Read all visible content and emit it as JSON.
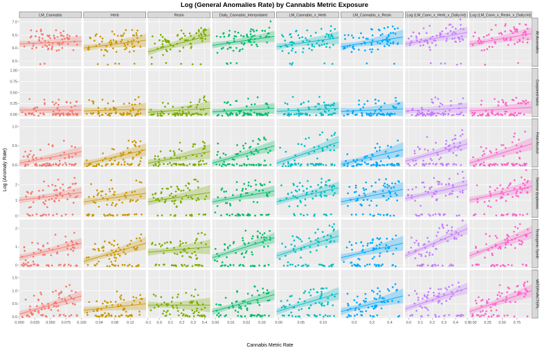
{
  "chart_data": {
    "type": "scatter",
    "title": "Log (General Anomalies Rate) by Cannabis Metric Exposure",
    "xlabel": "Cannabis Metric Rate",
    "ylabel": "Log (Anomaly Rate)",
    "grid": true,
    "smoother": "linear fit with confidence band",
    "columns": [
      {
        "name": "LM_Cannabis",
        "color": "#F8766D",
        "xlim": [
          0,
          0.1
        ],
        "xticks": [
          0.0,
          0.025,
          0.05,
          0.075,
          0.1
        ],
        "xtick_labels": [
          "0.000",
          "0.025",
          "0.050",
          "0.075",
          "0.100"
        ]
      },
      {
        "name": "Herb",
        "color": "#CD9600",
        "xlim": [
          0.0,
          0.16
        ],
        "xticks": [
          0.04,
          0.08,
          0.12
        ],
        "xtick_labels": [
          "0.04",
          "0.08",
          "0.12"
        ]
      },
      {
        "name": "Resin",
        "color": "#7CAE00",
        "xlim": [
          -0.1,
          0.45
        ],
        "xticks": [
          -0.1,
          0.0,
          0.1,
          0.2,
          0.3,
          0.4
        ],
        "xtick_labels": [
          "-0.1",
          "0.0",
          "0.1",
          "0.2",
          "0.3",
          "0.4"
        ]
      },
      {
        "name": "Daily_Cannabis_Interpolated",
        "color": "#00BE67",
        "xlim": [
          -0.002,
          0.038
        ],
        "xticks": [
          0.0,
          0.01,
          0.02,
          0.03
        ],
        "xtick_labels": [
          "0.00",
          "0.01",
          "0.02",
          "0.03"
        ]
      },
      {
        "name": "LM_Cannabis_x_Herb",
        "color": "#00BFC4",
        "xlim": [
          -0.005,
          0.135
        ],
        "xticks": [
          0.0,
          0.05,
          0.1
        ],
        "xtick_labels": [
          "0.00",
          "0.05",
          "0.10"
        ]
      },
      {
        "name": "LM_Cannabis_x_Resin",
        "color": "#00A9FF",
        "xlim": [
          -0.15,
          0.55
        ],
        "xticks": [
          0.0,
          0.2,
          0.4
        ],
        "xtick_labels": [
          "0.0",
          "0.2",
          "0.4"
        ]
      },
      {
        "name": "Log (LM_Cann_x_Herb_x_Daily.Int)",
        "color": "#C77CFF",
        "xlim": [
          -0.03,
          0.5
        ],
        "xticks": [
          0.0,
          0.1,
          0.2,
          0.3,
          0.4,
          0.5
        ],
        "xtick_labels": [
          "0.0",
          "0.1",
          "0.2",
          "0.3",
          "0.4",
          "0.5"
        ]
      },
      {
        "name": "Log (LM_Cann_x_Resin_x_Daily.Int)",
        "color": "#FF61CC",
        "xlim": [
          -0.06,
          1.0
        ],
        "xticks": [
          0.0,
          0.25,
          0.5,
          0.75
        ],
        "xtick_labels": [
          "0.00",
          "0.25",
          "0.50",
          "0.75"
        ]
      }
    ],
    "rows": [
      {
        "name": "All Anomalies",
        "ylim": [
          5.3,
          7.15
        ],
        "yticks": [
          5.5,
          6.0,
          6.5,
          7.0
        ],
        "ytick_labels": [
          "5.5",
          "6.0",
          "6.5",
          "7.0"
        ],
        "base": 6.05,
        "spread": 0.38,
        "low_cluster": 0.05,
        "fit": [
          [
            6.16,
            6.26
          ],
          [
            6.0,
            6.3
          ],
          [
            5.85,
            6.5
          ],
          [
            6.1,
            6.45
          ],
          [
            6.05,
            6.4
          ],
          [
            6.05,
            6.42
          ],
          [
            6.15,
            6.6
          ],
          [
            6.15,
            6.55
          ]
        ]
      },
      {
        "name": "Conjoined twins",
        "ylim": [
          -0.05,
          1.05
        ],
        "yticks": [
          0.0,
          0.25,
          0.5,
          0.75,
          1.0
        ],
        "ytick_labels": [
          "0.00",
          "0.25",
          "0.50",
          "0.75",
          "1.00"
        ],
        "base": 0.12,
        "spread": 0.2,
        "low_cluster": 0.45,
        "fit": [
          [
            0.1,
            0.1
          ],
          [
            0.08,
            0.12
          ],
          [
            0.05,
            0.14
          ],
          [
            0.06,
            0.14
          ],
          [
            0.07,
            0.14
          ],
          [
            0.07,
            0.13
          ],
          [
            0.08,
            0.15
          ],
          [
            0.08,
            0.16
          ]
        ]
      },
      {
        "name": "Fetal Alcohol",
        "ylim": [
          -0.05,
          1.2
        ],
        "yticks": [
          0.0,
          0.5,
          1.0
        ],
        "ytick_labels": [
          "0.0",
          "0.5",
          "1.0"
        ],
        "base": 0.2,
        "spread": 0.3,
        "low_cluster": 0.45,
        "fit": [
          [
            0.05,
            0.35
          ],
          [
            0.02,
            0.4
          ],
          [
            0.05,
            0.35
          ],
          [
            0.05,
            0.5
          ],
          [
            0.05,
            0.6
          ],
          [
            0.02,
            0.4
          ],
          [
            0.1,
            0.55
          ],
          [
            0.05,
            0.55
          ]
        ]
      },
      {
        "name": "Skeletal dysplasias",
        "ylim": [
          -0.1,
          3.0
        ],
        "yticks": [
          0,
          1,
          2
        ],
        "ytick_labels": [
          "0",
          "1",
          "2"
        ],
        "base": 1.0,
        "spread": 0.7,
        "low_cluster": 0.25,
        "fit": [
          [
            1.0,
            1.5
          ],
          [
            0.9,
            1.45
          ],
          [
            0.9,
            1.5
          ],
          [
            0.9,
            1.6
          ],
          [
            0.9,
            1.8
          ],
          [
            0.9,
            1.7
          ],
          [
            1.1,
            2.0
          ],
          [
            1.0,
            1.9
          ]
        ]
      },
      {
        "name": "Teratogenic Syndr",
        "ylim": [
          -0.15,
          2.5
        ],
        "yticks": [
          0,
          1,
          2
        ],
        "ytick_labels": [
          "0",
          "1",
          "2"
        ],
        "base": 0.8,
        "spread": 0.6,
        "low_cluster": 0.3,
        "fit": [
          [
            0.4,
            1.2
          ],
          [
            0.2,
            1.2
          ],
          [
            0.7,
            1.0
          ],
          [
            0.4,
            1.5
          ],
          [
            0.5,
            1.6
          ],
          [
            0.4,
            1.2
          ],
          [
            0.5,
            2.0
          ],
          [
            0.5,
            1.8
          ]
        ]
      },
      {
        "name": "VATER/VACTERL",
        "ylim": [
          -0.05,
          1.8
        ],
        "yticks": [
          0.0,
          0.5,
          1.0,
          1.5
        ],
        "ytick_labels": [
          "0.0",
          "0.5",
          "1.0",
          "1.5"
        ],
        "base": 0.35,
        "spread": 0.4,
        "low_cluster": 0.3,
        "fit": [
          [
            0.1,
            0.8
          ],
          [
            0.25,
            0.5
          ],
          [
            0.45,
            0.45
          ],
          [
            0.2,
            0.85
          ],
          [
            0.2,
            0.9
          ],
          [
            0.2,
            0.8
          ],
          [
            0.3,
            1.1
          ],
          [
            0.2,
            1.0
          ]
        ]
      }
    ]
  }
}
